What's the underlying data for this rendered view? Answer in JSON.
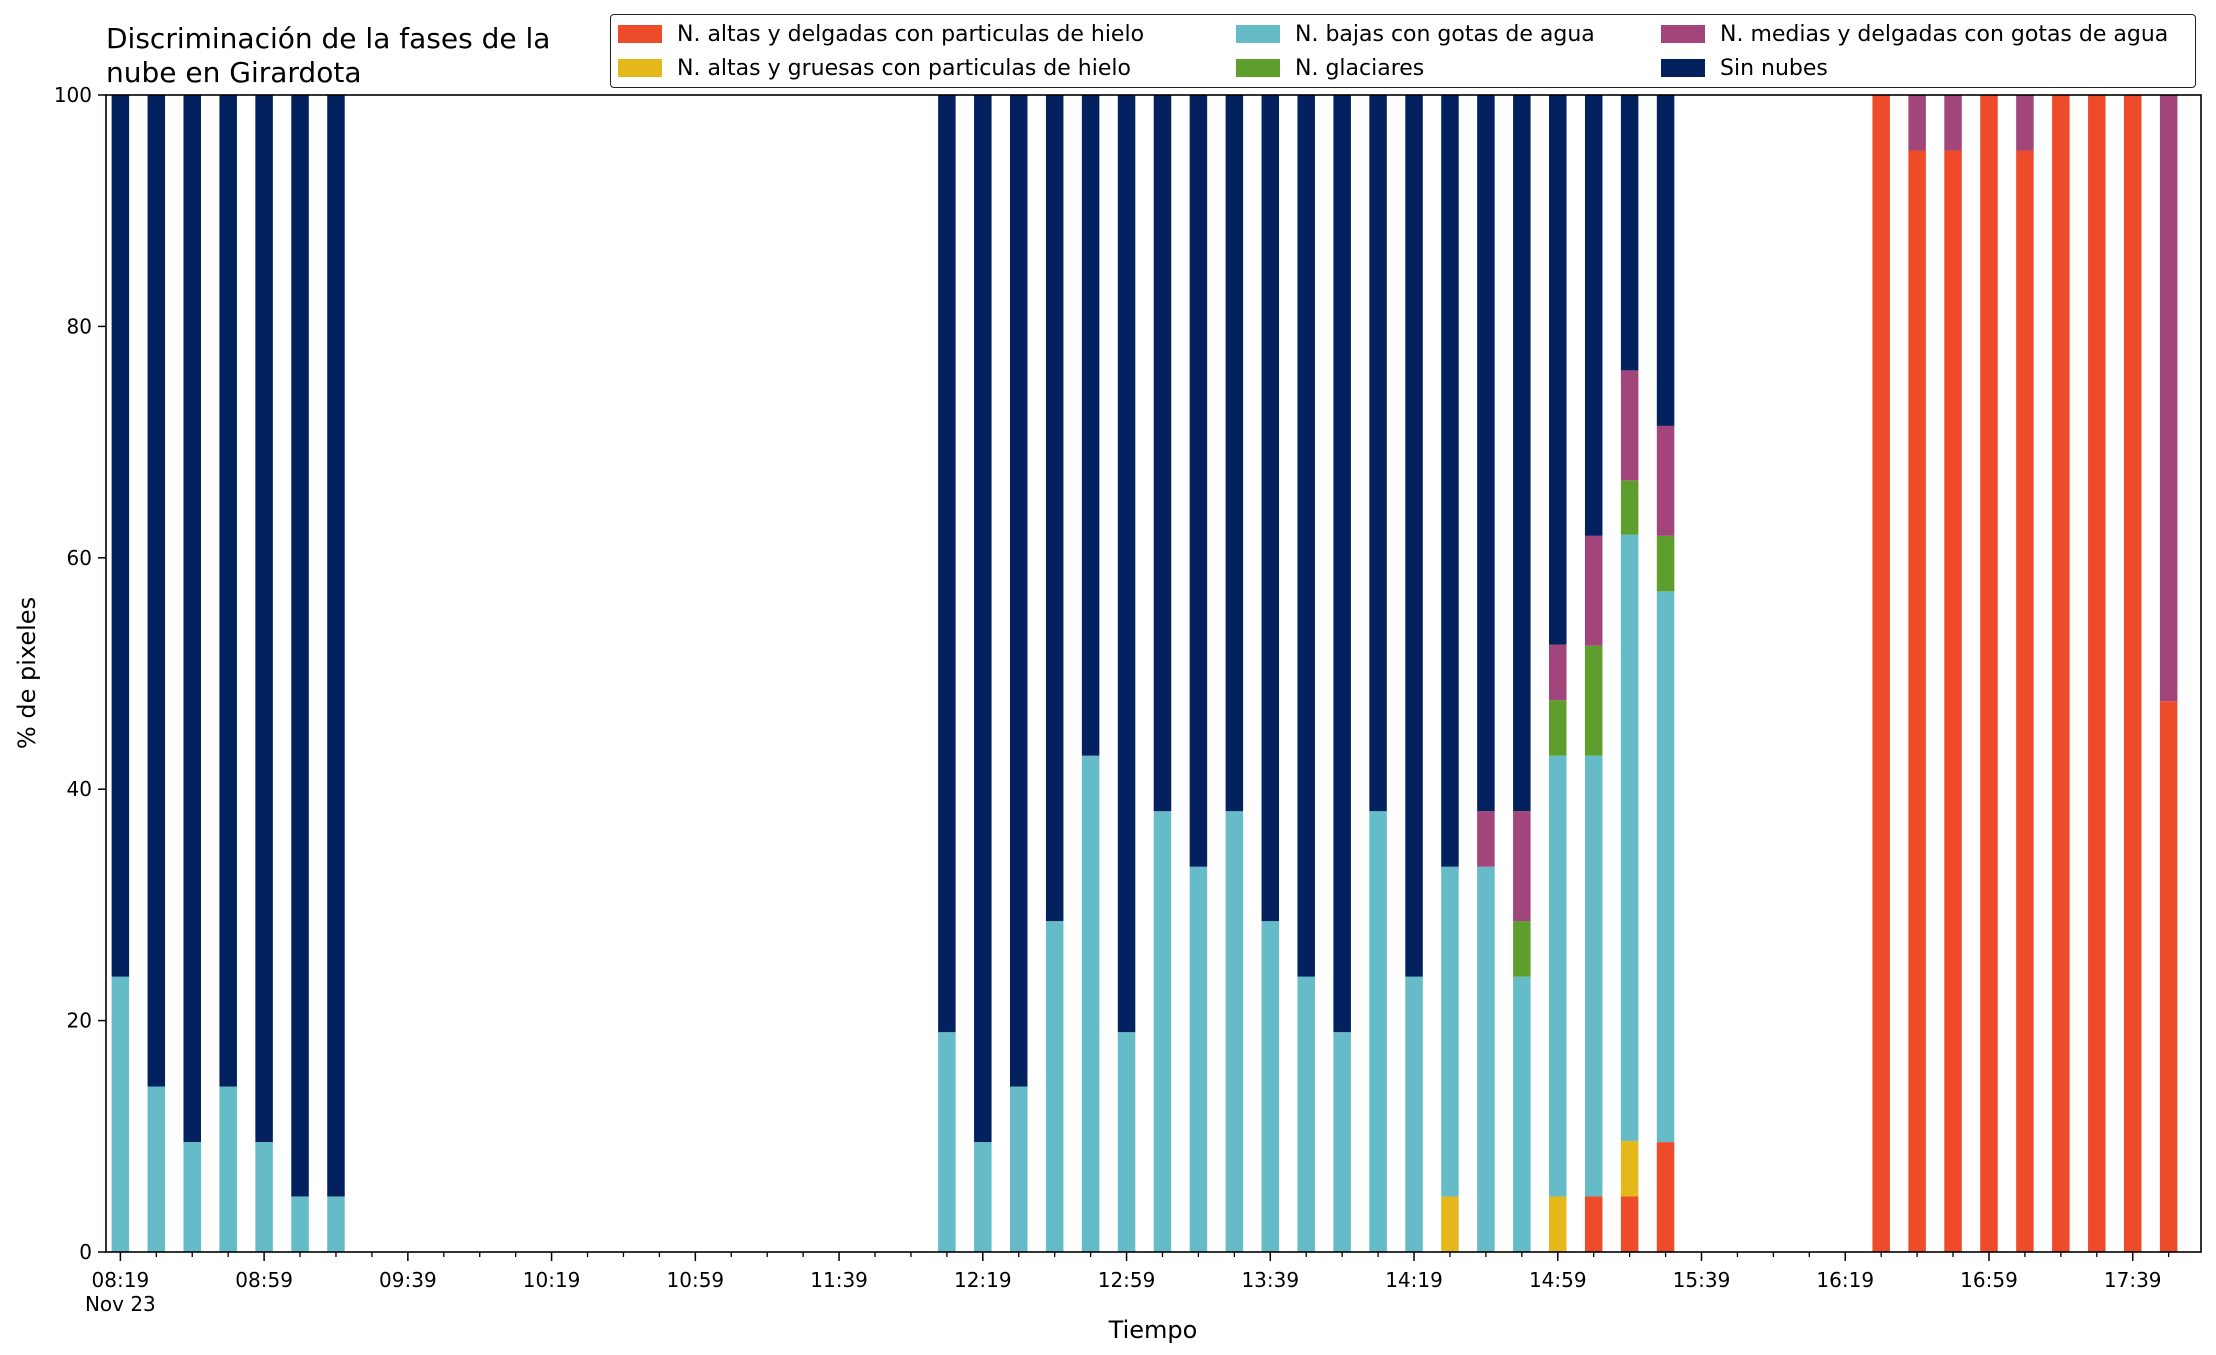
{
  "chart_data": {
    "type": "bar",
    "stacked": true,
    "title_lines": [
      "Discriminación de la fases de la",
      "nube en Girardota"
    ],
    "xlabel": "Tiempo",
    "ylabel": "% de pixeles",
    "ylim": [
      0,
      100
    ],
    "yticks": [
      0,
      20,
      40,
      60,
      80,
      100
    ],
    "x_range_minutes": [
      495,
      1078
    ],
    "xtick_major": [
      {
        "t": 499,
        "label": "08:19",
        "sublabel": "Nov 23"
      },
      {
        "t": 539,
        "label": "08:59"
      },
      {
        "t": 579,
        "label": "09:39"
      },
      {
        "t": 619,
        "label": "10:19"
      },
      {
        "t": 659,
        "label": "10:59"
      },
      {
        "t": 699,
        "label": "11:39"
      },
      {
        "t": 739,
        "label": "12:19"
      },
      {
        "t": 779,
        "label": "12:59"
      },
      {
        "t": 819,
        "label": "13:39"
      },
      {
        "t": 859,
        "label": "14:19"
      },
      {
        "t": 899,
        "label": "14:59"
      },
      {
        "t": 939,
        "label": "15:39"
      },
      {
        "t": 979,
        "label": "16:19"
      },
      {
        "t": 1019,
        "label": "16:59"
      },
      {
        "t": 1059,
        "label": "17:39"
      }
    ],
    "xtick_minor_step": 10,
    "legend_placement": "top, 3 columns",
    "series": [
      {
        "name": "N. altas y delgadas con particulas de hielo",
        "color": "#EE4B2B"
      },
      {
        "name": "N. altas y gruesas con particulas de hielo",
        "color": "#E5B81C"
      },
      {
        "name": "N. bajas con gotas de agua",
        "color": "#65BCC8"
      },
      {
        "name": "N. glaciares",
        "color": "#5E9E2C"
      },
      {
        "name": "N. medias y delgadas con gotas de agua",
        "color": "#A2457A"
      },
      {
        "name": "Sin nubes",
        "color": "#03205F"
      }
    ],
    "bars": [
      {
        "time": "08:19",
        "values": [
          0,
          0,
          23.8,
          0,
          0,
          76.2
        ]
      },
      {
        "time": "08:29",
        "values": [
          0,
          0,
          14.3,
          0,
          0,
          85.7
        ]
      },
      {
        "time": "08:39",
        "values": [
          0,
          0,
          9.5,
          0,
          0,
          90.5
        ]
      },
      {
        "time": "08:49",
        "values": [
          0,
          0,
          14.3,
          0,
          0,
          85.7
        ]
      },
      {
        "time": "08:59",
        "values": [
          0,
          0,
          9.5,
          0,
          0,
          90.5
        ]
      },
      {
        "time": "09:09",
        "values": [
          0,
          0,
          4.8,
          0,
          0,
          95.2
        ]
      },
      {
        "time": "09:19",
        "values": [
          0,
          0,
          4.8,
          0,
          0,
          95.2
        ]
      },
      {
        "time": "12:09",
        "values": [
          0,
          0,
          19.0,
          0,
          0,
          81.0
        ]
      },
      {
        "time": "12:19",
        "values": [
          0,
          0,
          9.5,
          0,
          0,
          90.5
        ]
      },
      {
        "time": "12:29",
        "values": [
          0,
          0,
          14.3,
          0,
          0,
          85.7
        ]
      },
      {
        "time": "12:39",
        "values": [
          0,
          0,
          28.6,
          0,
          0,
          71.4
        ]
      },
      {
        "time": "12:49",
        "values": [
          0,
          0,
          42.9,
          0,
          0,
          57.1
        ]
      },
      {
        "time": "12:59",
        "values": [
          0,
          0,
          19.0,
          0,
          0,
          81.0
        ]
      },
      {
        "time": "13:09",
        "values": [
          0,
          0,
          38.1,
          0,
          0,
          61.9
        ]
      },
      {
        "time": "13:19",
        "values": [
          0,
          0,
          33.3,
          0,
          0,
          66.7
        ]
      },
      {
        "time": "13:29",
        "values": [
          0,
          0,
          38.1,
          0,
          0,
          61.9
        ]
      },
      {
        "time": "13:39",
        "values": [
          0,
          0,
          28.6,
          0,
          0,
          71.4
        ]
      },
      {
        "time": "13:49",
        "values": [
          0,
          0,
          23.8,
          0,
          0,
          76.2
        ]
      },
      {
        "time": "13:59",
        "values": [
          0,
          0,
          19.0,
          0,
          0,
          81.0
        ]
      },
      {
        "time": "14:09",
        "values": [
          0,
          0,
          38.1,
          0,
          0,
          61.9
        ]
      },
      {
        "time": "14:19",
        "values": [
          0,
          0,
          23.8,
          0,
          0,
          76.2
        ]
      },
      {
        "time": "14:29",
        "values": [
          0,
          4.8,
          28.5,
          0,
          0,
          66.7
        ]
      },
      {
        "time": "14:39",
        "values": [
          0,
          0,
          33.3,
          0,
          4.8,
          61.9
        ]
      },
      {
        "time": "14:49",
        "values": [
          0,
          0,
          23.8,
          4.8,
          9.5,
          61.9
        ]
      },
      {
        "time": "14:59",
        "values": [
          0,
          4.8,
          38.1,
          4.8,
          4.8,
          47.5
        ]
      },
      {
        "time": "15:09",
        "values": [
          4.8,
          0,
          38.1,
          9.5,
          9.5,
          38.1
        ]
      },
      {
        "time": "15:19",
        "values": [
          4.8,
          4.8,
          52.4,
          4.7,
          9.5,
          23.8
        ]
      },
      {
        "time": "15:29",
        "values": [
          9.5,
          0,
          47.6,
          4.8,
          9.5,
          28.6
        ]
      },
      {
        "time": "16:29",
        "values": [
          100,
          0,
          0,
          0,
          0,
          0
        ]
      },
      {
        "time": "16:39",
        "values": [
          95.2,
          0,
          0,
          0,
          4.8,
          0
        ]
      },
      {
        "time": "16:49",
        "values": [
          95.2,
          0,
          0,
          0,
          4.8,
          0
        ]
      },
      {
        "time": "16:59",
        "values": [
          100,
          0,
          0,
          0,
          0,
          0
        ]
      },
      {
        "time": "17:09",
        "values": [
          95.2,
          0,
          0,
          0,
          4.8,
          0
        ]
      },
      {
        "time": "17:19",
        "values": [
          100,
          0,
          0,
          0,
          0,
          0
        ]
      },
      {
        "time": "17:29",
        "values": [
          100,
          0,
          0,
          0,
          0,
          0
        ]
      },
      {
        "time": "17:39",
        "values": [
          100,
          0,
          0,
          0,
          0,
          0
        ]
      },
      {
        "time": "17:49",
        "values": [
          47.6,
          0,
          0,
          0,
          52.4,
          0
        ]
      }
    ]
  }
}
